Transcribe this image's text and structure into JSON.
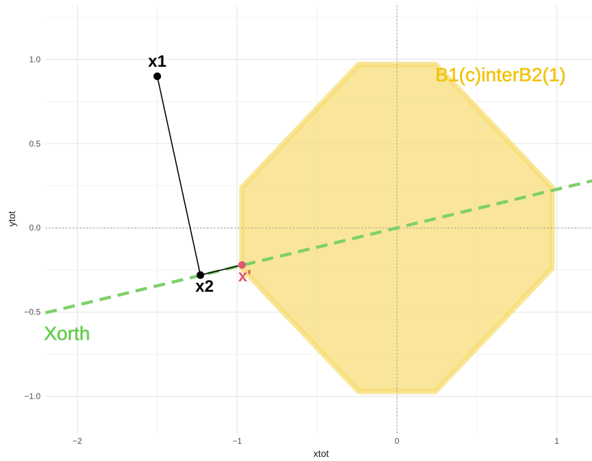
{
  "chart_data": {
    "type": "scatter",
    "xlabel": "xtot",
    "ylabel": "ytot",
    "xlim": [
      -2.2,
      1.22
    ],
    "ylim": [
      -1.22,
      1.32
    ],
    "grid": true,
    "x_ticks": [
      {
        "value": -2,
        "label": "−2"
      },
      {
        "value": -1,
        "label": "−1"
      },
      {
        "value": 0,
        "label": "0"
      },
      {
        "value": 1,
        "label": "1"
      }
    ],
    "y_ticks": [
      {
        "value": -1.0,
        "label": "−1.0"
      },
      {
        "value": -0.5,
        "label": "−0.5"
      },
      {
        "value": 0.0,
        "label": "0.0"
      },
      {
        "value": 0.5,
        "label": "0.5"
      },
      {
        "value": 1.0,
        "label": "1.0"
      }
    ],
    "reference_lines": {
      "x": 0,
      "y": 0,
      "style": "dotted"
    },
    "region": {
      "label": "B1(c)interB2(1)",
      "color": "#f7dc6f",
      "polygon": [
        [
          -0.24,
          0.97
        ],
        [
          0.24,
          0.97
        ],
        [
          0.97,
          0.24
        ],
        [
          0.97,
          -0.24
        ],
        [
          0.24,
          -0.97
        ],
        [
          -0.24,
          -0.97
        ],
        [
          -0.97,
          -0.24
        ],
        [
          -0.97,
          0.24
        ]
      ]
    },
    "xorth_line": {
      "label": "Xorth",
      "color": "#7ed06a",
      "slope": 0.229,
      "intercept": 0.0
    },
    "points": [
      {
        "name": "x1",
        "x": -1.5,
        "y": 0.9,
        "color": "#000000"
      },
      {
        "name": "x2",
        "x": -1.23,
        "y": -0.28,
        "color": "#000000"
      },
      {
        "name": "x'",
        "x": -0.97,
        "y": -0.22,
        "color": "#dc5a6e"
      }
    ],
    "segments": [
      {
        "from": "x1",
        "to": "x2",
        "color": "#000000"
      },
      {
        "from": "x2",
        "to": "x'",
        "color": "#000000"
      }
    ]
  }
}
